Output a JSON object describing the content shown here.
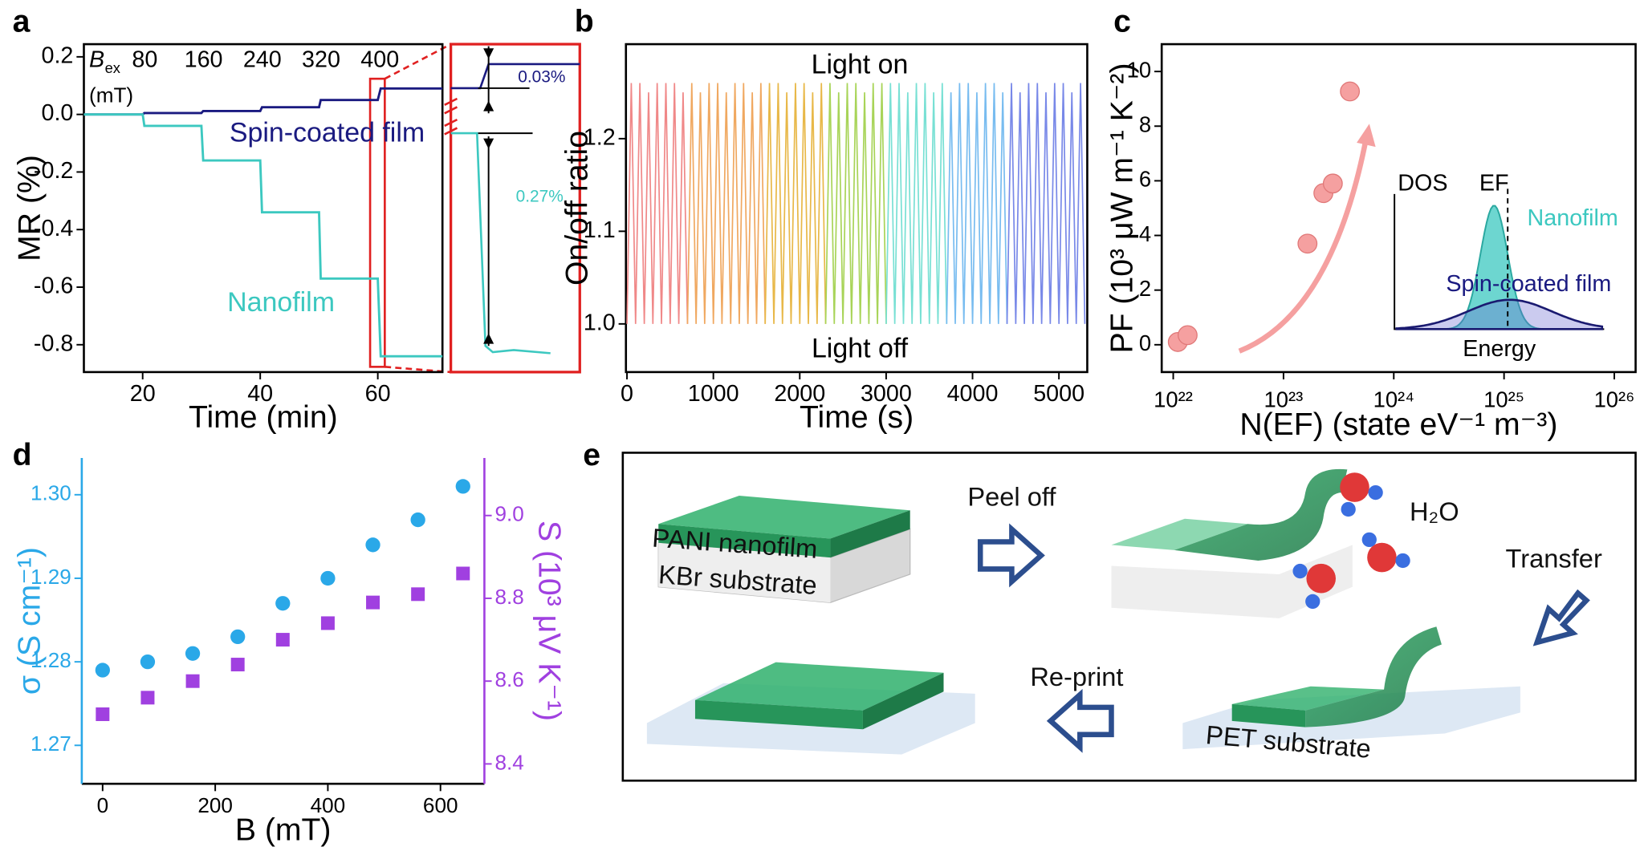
{
  "chart_data": [
    {
      "panel": "a",
      "type": "line",
      "xlabel": "Time (min)",
      "ylabel": "MR (%)",
      "xlim": [
        10,
        71
      ],
      "ylim": [
        -0.895,
        0.244
      ],
      "xticks": [
        20,
        40,
        60
      ],
      "yticks": [
        0.2,
        {
          "value": 0,
          "label": "0.0"
        },
        -0.2,
        -0.4,
        -0.6,
        -0.8
      ],
      "x": [
        10,
        20,
        20.3,
        30,
        30.3,
        40,
        40.3,
        50,
        50.3,
        60,
        60.5,
        71
      ],
      "series": [
        {
          "name": "Spin-coated film",
          "color": "#1a1a80",
          "values": [
            0,
            0,
            0.005,
            0.005,
            0.012,
            0.012,
            0.025,
            0.025,
            0.05,
            0.05,
            0.09,
            0.09
          ]
        },
        {
          "name": "Nanofilm",
          "color": "#3cc8c0",
          "values": [
            0,
            0,
            -0.04,
            -0.04,
            -0.16,
            -0.16,
            -0.34,
            -0.34,
            -0.57,
            -0.57,
            -0.84,
            -0.84
          ]
        }
      ],
      "field_symbol": "B",
      "field_subscript": "ex",
      "field_unit": "(mT)",
      "field_labels": [
        80,
        160,
        240,
        320,
        400
      ],
      "zoom_labels": [
        "0.03%",
        "0.27%"
      ]
    },
    {
      "panel": "b",
      "type": "line",
      "xlabel": "Time (s)",
      "ylabel": "On/off ratio",
      "xlim": [
        -12,
        5328
      ],
      "ylim": [
        0.948,
        1.302
      ],
      "xticks": [
        0,
        1000,
        2000,
        3000,
        4000,
        5000
      ],
      "yticks": [
        {
          "value": 1,
          "label": "1.0"
        },
        1.1,
        1.2
      ],
      "annotations": [
        "Light on",
        "Light off"
      ],
      "series": [
        {
          "color": "#f08888",
          "x": [
            0,
            50,
            100,
            150,
            200,
            250,
            300,
            350,
            400,
            450,
            500,
            550,
            600,
            650,
            700
          ],
          "values": [
            1.0,
            1.26,
            1.0,
            1.26,
            1.0,
            1.25,
            1.0,
            1.26,
            1.0,
            1.26,
            1.0,
            1.26,
            1.0,
            1.25,
            1.0
          ]
        },
        {
          "color": "#f0a860",
          "x": [
            700,
            750,
            800,
            850,
            900,
            950,
            1000,
            1050,
            1100,
            1150,
            1200,
            1250,
            1300,
            1350,
            1400,
            1450,
            1500,
            1550,
            1600
          ],
          "values": [
            1.0,
            1.26,
            1.0,
            1.25,
            1.0,
            1.26,
            1.0,
            1.26,
            1.0,
            1.25,
            1.0,
            1.26,
            1.0,
            1.26,
            1.0,
            1.25,
            1.0,
            1.26,
            1.0
          ]
        },
        {
          "color": "#e8b848",
          "x": [
            1600,
            1650,
            1700,
            1750,
            1800,
            1850,
            1900,
            1950,
            2000,
            2050,
            2100,
            2150,
            2200,
            2250,
            2300
          ],
          "values": [
            1.0,
            1.26,
            1.0,
            1.26,
            1.0,
            1.25,
            1.0,
            1.26,
            1.0,
            1.26,
            1.0,
            1.25,
            1.0,
            1.26,
            1.0
          ]
        },
        {
          "color": "#a8d458",
          "x": [
            2300,
            2350,
            2400,
            2450,
            2500,
            2550,
            2600,
            2650,
            2700,
            2750,
            2800,
            2850,
            2900,
            2950,
            3000
          ],
          "values": [
            1.0,
            1.26,
            1.0,
            1.25,
            1.0,
            1.26,
            1.0,
            1.26,
            1.0,
            1.25,
            1.0,
            1.26,
            1.0,
            1.26,
            1.0
          ]
        },
        {
          "color": "#78e0d4",
          "x": [
            3000,
            3050,
            3100,
            3150,
            3200,
            3250,
            3300,
            3350,
            3400,
            3450,
            3500,
            3550,
            3600,
            3650,
            3700
          ],
          "values": [
            1.0,
            1.26,
            1.0,
            1.26,
            1.0,
            1.25,
            1.0,
            1.26,
            1.0,
            1.26,
            1.0,
            1.25,
            1.0,
            1.26,
            1.0
          ]
        },
        {
          "color": "#78bcf0",
          "x": [
            3700,
            3750,
            3800,
            3850,
            3900,
            3950,
            4000,
            4050,
            4100,
            4150,
            4200,
            4250,
            4300,
            4350,
            4400
          ],
          "values": [
            1.0,
            1.25,
            1.0,
            1.26,
            1.0,
            1.26,
            1.0,
            1.25,
            1.0,
            1.26,
            1.0,
            1.26,
            1.0,
            1.25,
            1.0
          ]
        },
        {
          "color": "#7888e8",
          "x": [
            4400,
            4450,
            4500,
            4550,
            4600,
            4650,
            4700,
            4750,
            4800,
            4850,
            4900,
            4950,
            5000,
            5050,
            5100,
            5150,
            5200,
            5250,
            5300
          ],
          "values": [
            1.0,
            1.26,
            1.0,
            1.25,
            1.0,
            1.26,
            1.0,
            1.26,
            1.0,
            1.25,
            1.0,
            1.26,
            1.0,
            1.26,
            1.0,
            1.25,
            1.0,
            1.26,
            1.0
          ]
        }
      ]
    },
    {
      "panel": "c",
      "type": "scatter",
      "xscale": "log",
      "xlabel": "N(EF) (state eV⁻¹ m⁻³)",
      "ylabel": "PF (10³ μW m⁻¹ K⁻²)",
      "xlim": [
        7.86e+21,
        1.56e+26
      ],
      "ylim": [
        -1.0,
        11.0
      ],
      "xticks": [
        {
          "value": 1e+22,
          "label": "10²²"
        },
        {
          "value": 1e+23,
          "label": "10²³"
        },
        {
          "value": 1e+24,
          "label": "10²⁴"
        },
        {
          "value": 1e+25,
          "label": "10²⁵"
        },
        {
          "value": 1e+26,
          "label": "10²⁶"
        }
      ],
      "yticks": [
        0,
        2,
        4,
        6,
        8,
        10
      ],
      "color": "#f5a0a0",
      "x": [
        1.1e+22,
        1.35e+22,
        1.65e+23,
        2.3e+23,
        2.8e+23,
        4e+23
      ],
      "values": [
        0.1,
        0.35,
        3.7,
        5.55,
        5.9,
        9.27
      ],
      "inset": {
        "ylabel": "DOS",
        "marker": "EF",
        "xlabel": "Energy",
        "curves": [
          "Nanofilm",
          "Spin-coated film"
        ]
      }
    },
    {
      "panel": "d",
      "type": "scatter",
      "xlabel": "B (mT)",
      "ylabel": "σ (S cm⁻¹)",
      "y2label": "S (10³ μV K⁻¹)",
      "xlim": [
        -37,
        678
      ],
      "ylim": [
        1.2654,
        1.3044
      ],
      "y2lim": [
        8.352,
        9.139
      ],
      "xticks": [
        0,
        200,
        400,
        600
      ],
      "yticks": [
        1.27,
        1.28,
        1.29,
        {
          "value": 1.3,
          "label": "1.30"
        }
      ],
      "y2ticks": [
        8.4,
        8.6,
        8.8,
        {
          "value": 9,
          "label": "9.0"
        }
      ],
      "x": [
        0,
        80,
        160,
        240,
        320,
        400,
        480,
        560,
        640
      ],
      "series": [
        {
          "color": "#2aa8e8",
          "marker": "circle",
          "values": [
            1.279,
            1.28,
            1.281,
            1.283,
            1.287,
            1.29,
            1.294,
            1.297,
            1.301
          ]
        },
        {
          "color": "#a040e0",
          "marker": "square",
          "axis": "y2",
          "values": [
            8.52,
            8.56,
            8.6,
            8.64,
            8.7,
            8.74,
            8.79,
            8.81,
            8.86
          ]
        }
      ]
    }
  ],
  "diagram": {
    "panel": "e",
    "labels": {
      "peel": "Peel off",
      "water": "H₂O",
      "transfer": "Transfer",
      "reprint": "Re-print",
      "film": "PANI nanofilm",
      "kbr": "KBr substrate",
      "pet": "PET substrate"
    }
  }
}
